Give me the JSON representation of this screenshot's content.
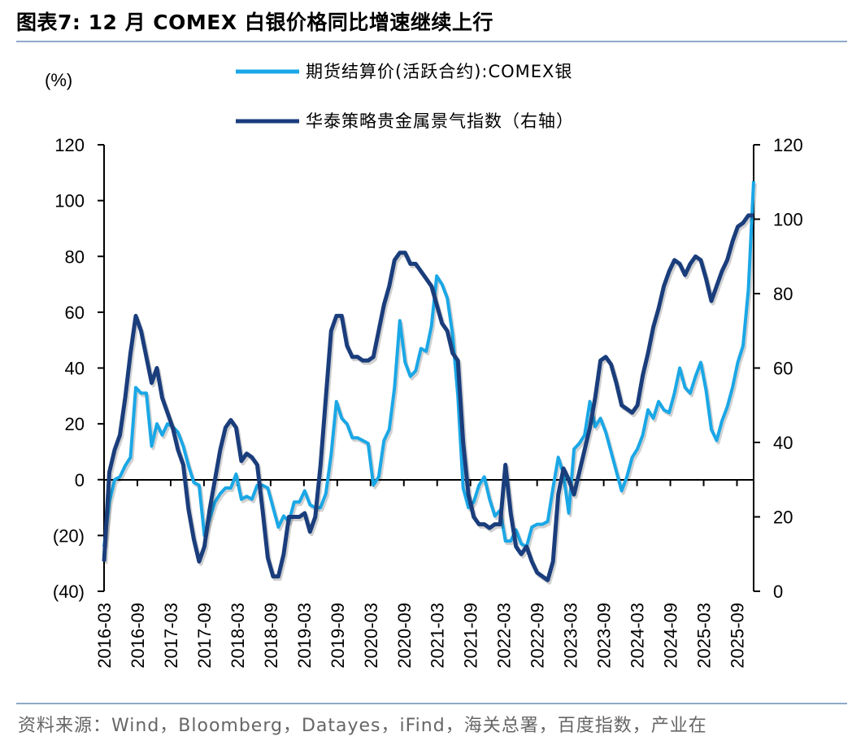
{
  "header": {
    "title": "图表7:  12 月  COMEX 白银价格同比增速继续上行"
  },
  "footer": {
    "source": "资料来源：Wind，Bloomberg，Datayes，iFind，海关总署，百度指数，产业在"
  },
  "chart_data": {
    "type": "line",
    "left_axis_unit": "(%)",
    "left_ylim": [
      -40,
      120
    ],
    "left_ticks": [
      "120",
      "100",
      "80",
      "60",
      "40",
      "20",
      "0",
      "(20)",
      "(40)"
    ],
    "left_tick_values": [
      120,
      100,
      80,
      60,
      40,
      20,
      0,
      -20,
      -40
    ],
    "right_ylim": [
      0,
      120
    ],
    "right_ticks": [
      "120",
      "100",
      "80",
      "60",
      "40",
      "20",
      "0"
    ],
    "right_tick_values": [
      120,
      100,
      80,
      60,
      40,
      20,
      0
    ],
    "x_tick_labels": [
      "2016-03",
      "2016-09",
      "2017-03",
      "2017-09",
      "2018-03",
      "2018-09",
      "2019-03",
      "2019-09",
      "2020-03",
      "2020-09",
      "2021-03",
      "2021-09",
      "2022-03",
      "2022-09",
      "2023-03",
      "2023-09",
      "2024-03",
      "2024-09",
      "2025-03",
      "2025-09"
    ],
    "x_start": "2016-03",
    "x_end": "2025-12",
    "legend_position": "top-center",
    "grid": false,
    "series": [
      {
        "name": "期货结算价(活跃合约):COMEX银",
        "axis": "left",
        "color": "#1aa7e6",
        "values": [
          -24,
          -8,
          0,
          1,
          5,
          8,
          33,
          31,
          31,
          12,
          20,
          16,
          20,
          19,
          17,
          12,
          5,
          -1,
          -2,
          -20,
          -14,
          -8,
          -5,
          -3,
          -3,
          2,
          -7,
          -6,
          -7,
          -2,
          -2,
          -3,
          -10,
          -17,
          -13,
          -15,
          -8,
          -8,
          -4,
          -9,
          -10,
          -10,
          -5,
          9,
          28,
          22,
          20,
          15,
          15,
          14,
          13,
          -2,
          1,
          14,
          18,
          33,
          57,
          42,
          37,
          39,
          47,
          46,
          55,
          73,
          70,
          65,
          52,
          30,
          -3,
          -10,
          -8,
          -2,
          1,
          -7,
          -13,
          -11,
          -22,
          -22,
          -18,
          -23,
          -24,
          -17,
          -16,
          -16,
          -15,
          -3,
          8,
          2,
          -12,
          11,
          13,
          16,
          28,
          19,
          22,
          17,
          10,
          3,
          -4,
          1,
          8,
          11,
          16,
          25,
          22,
          28,
          25,
          24,
          31,
          40,
          33,
          31,
          37,
          42,
          32,
          18,
          14,
          21,
          26,
          33,
          42,
          48,
          68,
          107
        ]
      },
      {
        "name": "华泰策略贵金属景气指数（右轴）",
        "axis": "right",
        "color": "#1a3d7c",
        "values": [
          8,
          32,
          38,
          42,
          52,
          64,
          74,
          70,
          63,
          56,
          60,
          52,
          48,
          44,
          38,
          34,
          22,
          14,
          8,
          12,
          22,
          30,
          38,
          44,
          46,
          44,
          35,
          37,
          36,
          34,
          22,
          9,
          4,
          4,
          10,
          20,
          20,
          20,
          21,
          16,
          20,
          34,
          52,
          70,
          74,
          74,
          66,
          63,
          63,
          62,
          62,
          63,
          70,
          77,
          82,
          89,
          91,
          91,
          88,
          88,
          86,
          84,
          82,
          77,
          72,
          70,
          64,
          62,
          40,
          26,
          20,
          18,
          18,
          17,
          18,
          18,
          34,
          21,
          12,
          10,
          12,
          8,
          5,
          4,
          3,
          8,
          26,
          33,
          30,
          26,
          32,
          38,
          44,
          52,
          62,
          63,
          61,
          56,
          50,
          49,
          48,
          50,
          58,
          64,
          71,
          76,
          82,
          86,
          89,
          88,
          85,
          88,
          90,
          89,
          84,
          78,
          82,
          86,
          89,
          94,
          98,
          99,
          101,
          101
        ]
      }
    ]
  }
}
